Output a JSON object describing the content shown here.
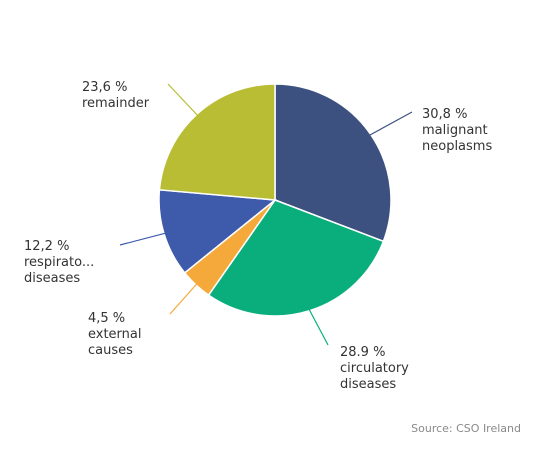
{
  "chart_data": {
    "type": "pie",
    "title": "",
    "slices": [
      {
        "value_label": "30,8 %",
        "value": 30.8,
        "label_lines": [
          "malignant",
          "neoplasms"
        ],
        "color": "#3c5180"
      },
      {
        "value_label": "28.9 %",
        "value": 28.9,
        "label_lines": [
          "circulatory",
          "diseases"
        ],
        "color": "#0aae7d"
      },
      {
        "value_label": "4,5 %",
        "value": 4.5,
        "label_lines": [
          "external",
          "causes"
        ],
        "color": "#f5a93a"
      },
      {
        "value_label": "12,2 %",
        "value": 12.2,
        "label_lines": [
          "respirato...",
          "diseases"
        ],
        "color": "#3d5aab"
      },
      {
        "value_label": "23,6 %",
        "value": 23.6,
        "label_lines": [
          "remainder"
        ],
        "color": "#b8bd34"
      }
    ],
    "source": "Source: CSO Ireland"
  }
}
